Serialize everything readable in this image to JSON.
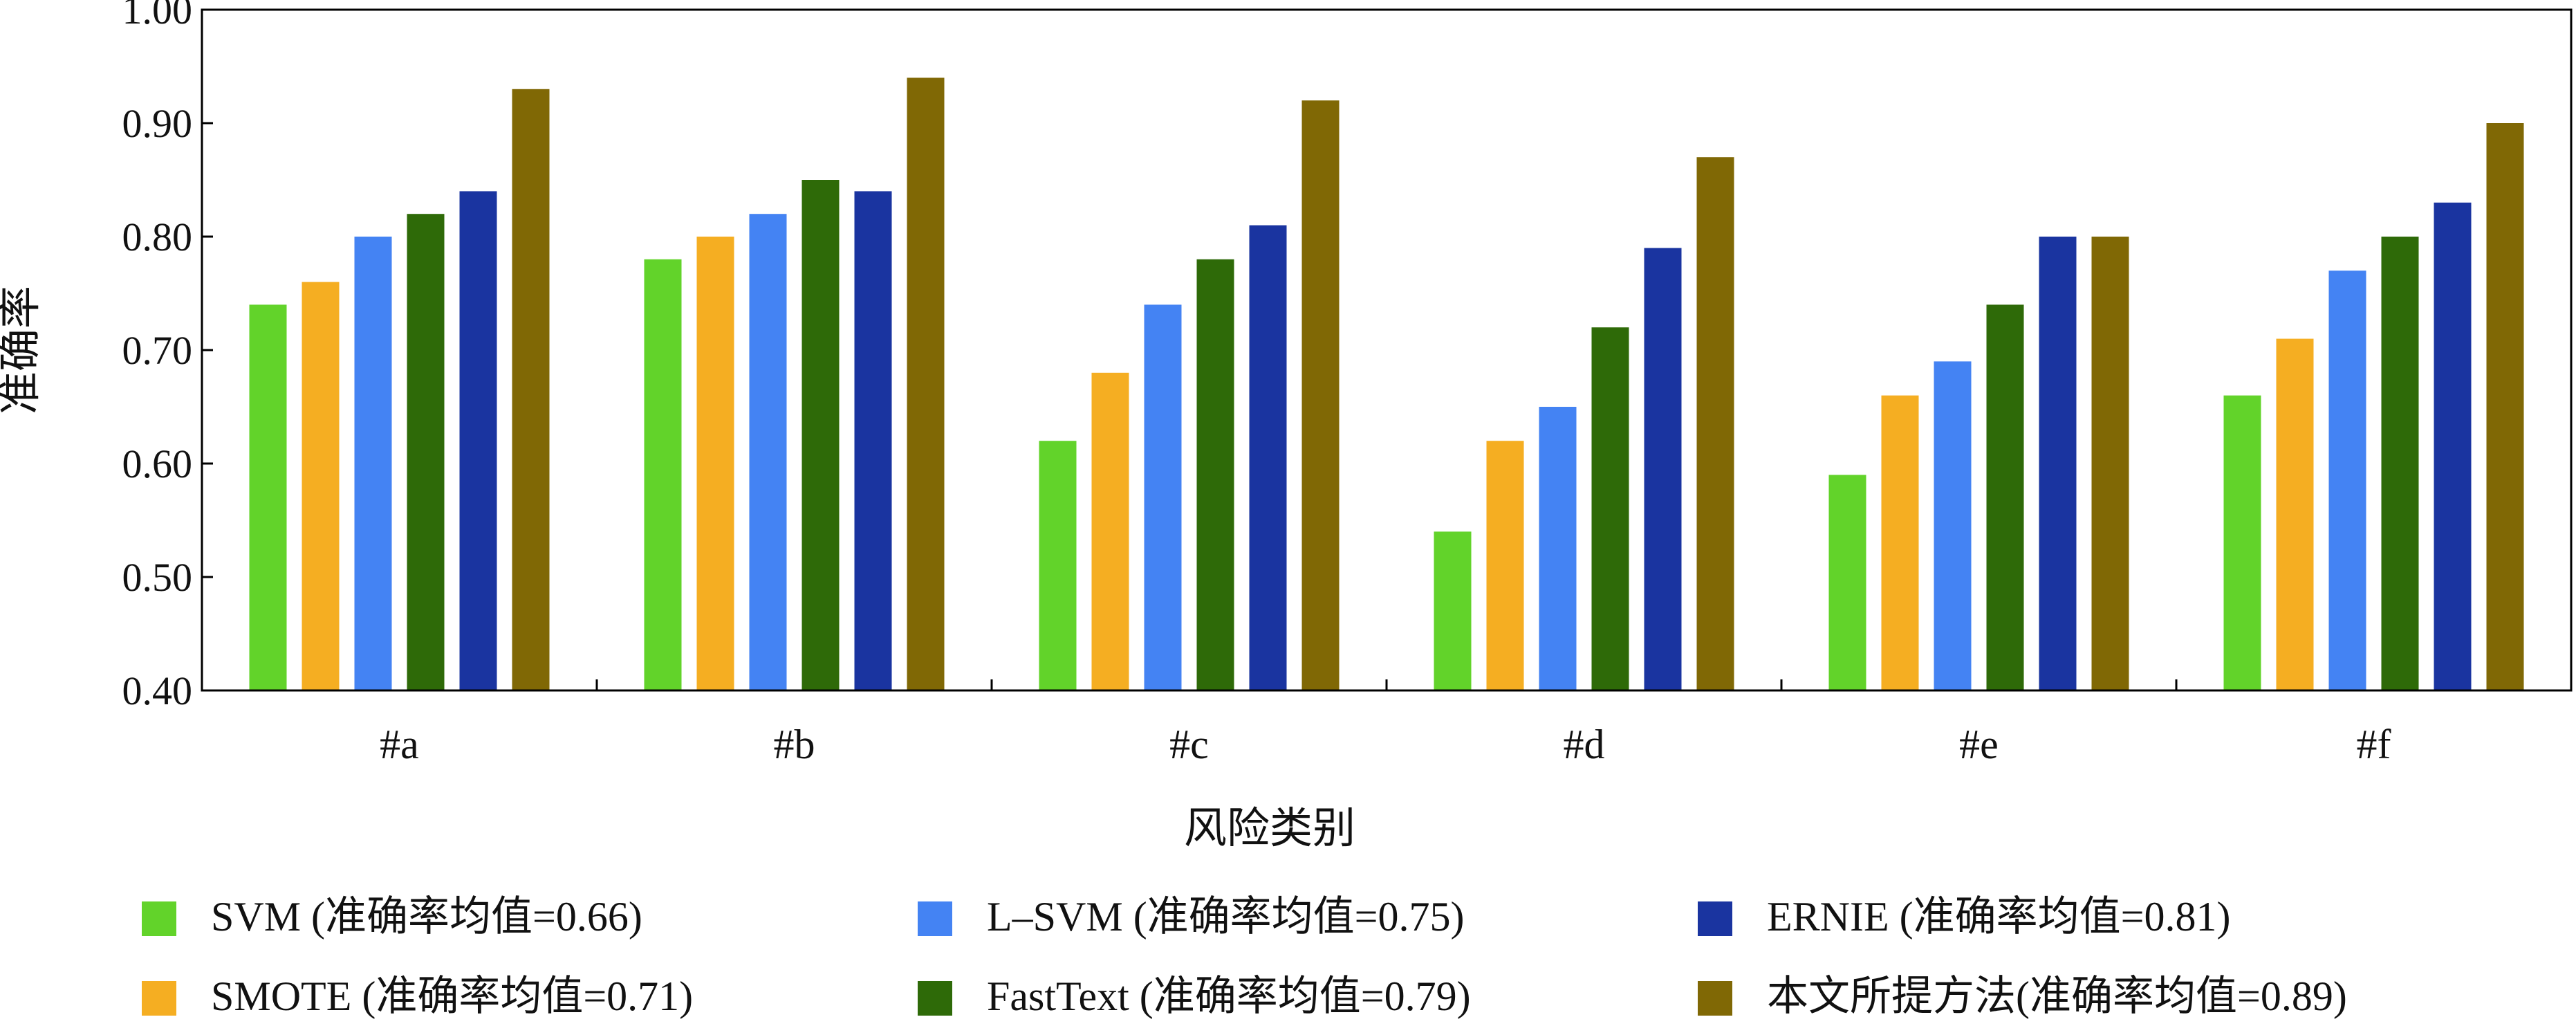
{
  "chart_data": {
    "type": "bar",
    "xlabel": "风险类别",
    "ylabel": "准确率",
    "ylim": [
      0.4,
      1.0
    ],
    "yticks": [
      "0.40",
      "0.50",
      "0.60",
      "0.70",
      "0.80",
      "0.90",
      "1.00"
    ],
    "categories": [
      "#a",
      "#b",
      "#c",
      "#d",
      "#e",
      "#f"
    ],
    "legend_position": "bottom",
    "grid": false,
    "series": [
      {
        "name": "SVM",
        "legend_label": "SVM (准确率均值=0.66)",
        "color": "#62d32a",
        "values": [
          0.74,
          0.78,
          0.62,
          0.54,
          0.59,
          0.66
        ]
      },
      {
        "name": "SMOTE",
        "legend_label": "SMOTE (准确率均值=0.71)",
        "color": "#f5ae22",
        "values": [
          0.76,
          0.8,
          0.68,
          0.62,
          0.66,
          0.71
        ]
      },
      {
        "name": "L–SVM",
        "legend_label": "L–SVM (准确率均值=0.75)",
        "color": "#4483f3",
        "values": [
          0.8,
          0.82,
          0.74,
          0.65,
          0.69,
          0.77
        ]
      },
      {
        "name": "FastText",
        "legend_label": "FastText (准确率均值=0.79)",
        "color": "#2e6a08",
        "values": [
          0.82,
          0.85,
          0.78,
          0.72,
          0.74,
          0.8
        ]
      },
      {
        "name": "ERNIE",
        "legend_label": "ERNIE (准确率均值=0.81)",
        "color": "#1a34a0",
        "values": [
          0.84,
          0.84,
          0.81,
          0.79,
          0.8,
          0.83
        ]
      },
      {
        "name": "本文所提方法",
        "legend_label": "本文所提方法(准确率均值=0.89)",
        "color": "#806805",
        "values": [
          0.93,
          0.94,
          0.92,
          0.87,
          0.8,
          0.9
        ]
      }
    ]
  }
}
